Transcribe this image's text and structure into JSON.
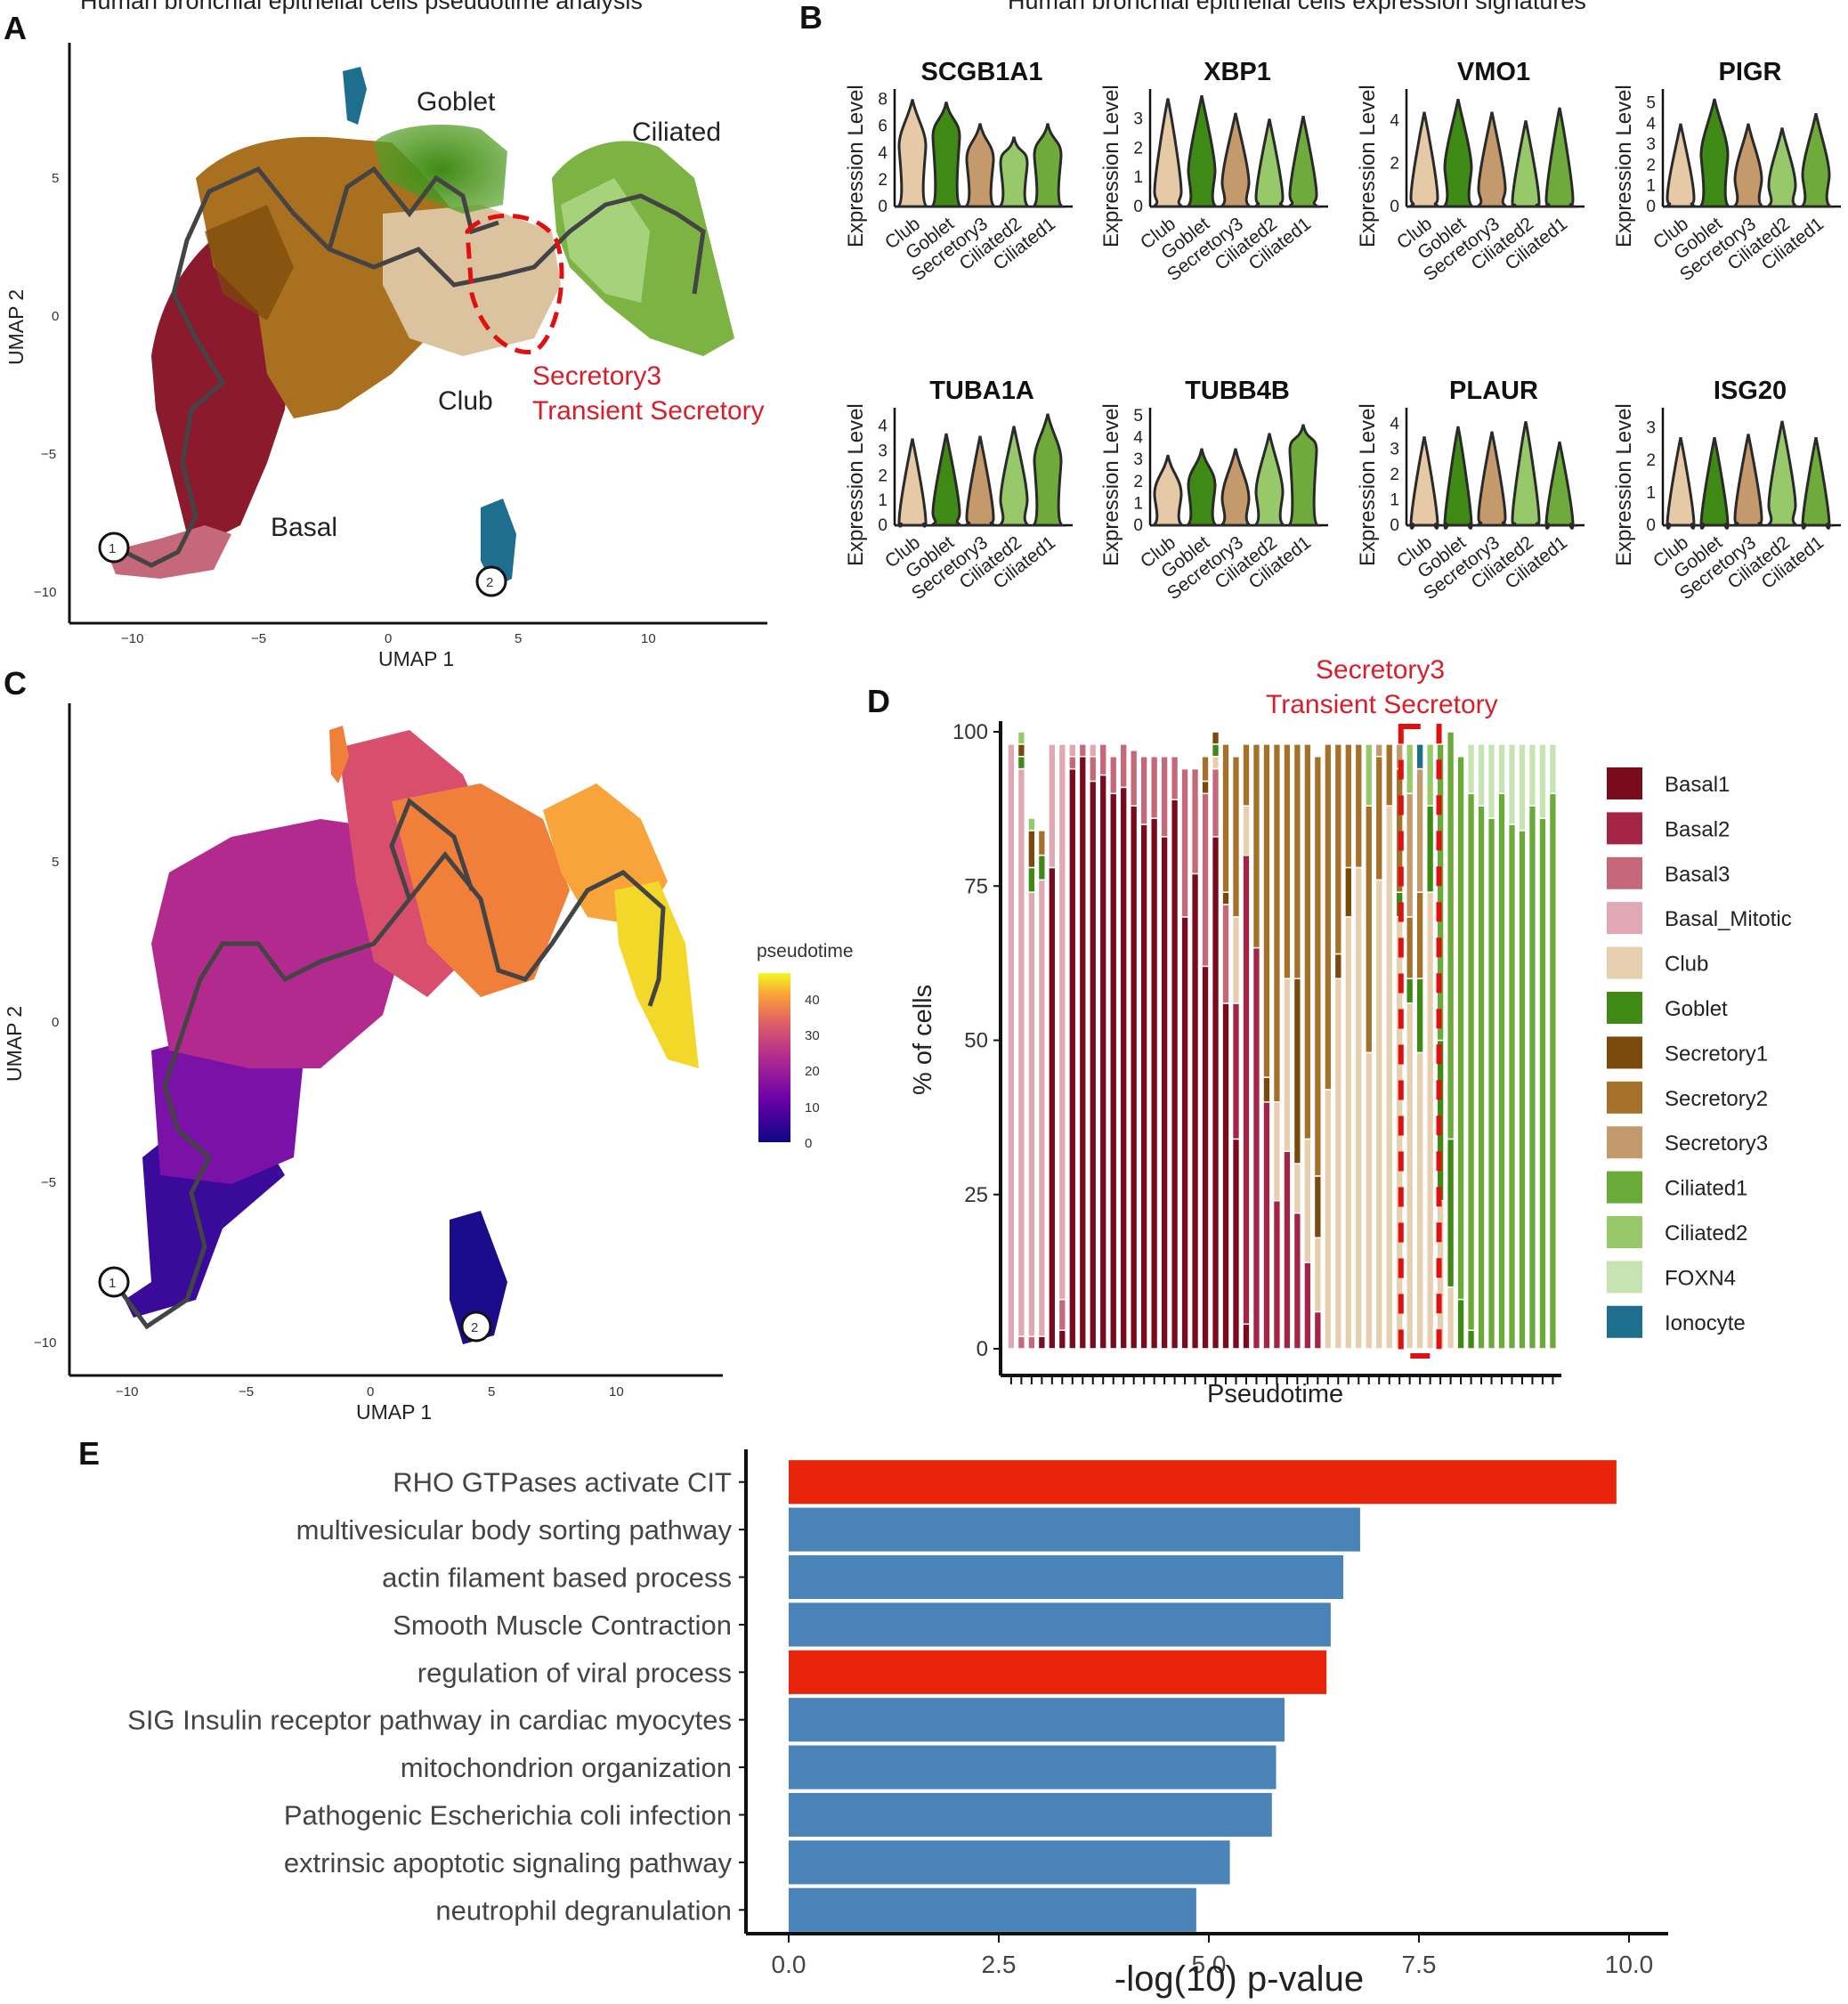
{
  "figure": {
    "panel_A": {
      "letter": "A",
      "title": "Human bronchial epithelial cells pseudotime analysis",
      "xlabel": "UMAP 1",
      "ylabel": "UMAP 2",
      "x_ticks": [
        "−10",
        "−5",
        "0",
        "5",
        "10"
      ],
      "y_ticks": [
        "5",
        "0",
        "−5",
        "−10"
      ],
      "cluster_labels": [
        "Goblet",
        "Ciliated",
        "Club",
        "Basal"
      ],
      "highlight_label_1": "Secretory3",
      "highlight_label_2": "Transient Secretory",
      "root_labels": [
        "1",
        "2"
      ]
    },
    "panel_B": {
      "letter": "B",
      "title": "Human bronchial epithelial cells expression signatures"
    },
    "panel_C": {
      "letter": "C",
      "xlabel": "UMAP 1",
      "ylabel": "UMAP 2",
      "x_ticks": [
        "−10",
        "−5",
        "0",
        "5",
        "10"
      ],
      "y_ticks": [
        "5",
        "0",
        "−5",
        "−10"
      ],
      "root_labels": [
        "1",
        "2"
      ],
      "colorbar_title": "pseudotime",
      "colorbar_ticks": [
        "40",
        "30",
        "20",
        "10",
        "0"
      ]
    },
    "panel_D": {
      "letter": "D",
      "highlight_label_1": "Secretory3",
      "highlight_label_2": "Transient Secretory"
    },
    "panel_E": {
      "letter": "E"
    }
  },
  "chart_data": [
    {
      "type": "violin",
      "panel": "B",
      "ylabel": "Expression Level",
      "categories": [
        "Club",
        "Goblet",
        "Secretory3",
        "Ciliated2",
        "Ciliated1"
      ],
      "colors": {
        "Club": "#e6c9a6",
        "Goblet": "#3f8a14",
        "Secretory3": "#c49a6c",
        "Ciliated2": "#97c96a",
        "Ciliated1": "#6eab3a"
      },
      "genes": [
        {
          "name": "SCGB1A1",
          "ylim": [
            0,
            8.5
          ],
          "ticks": [
            "0",
            "2",
            "4",
            "6",
            "8"
          ],
          "medians": [
            4.5,
            5.2,
            3.5,
            3.2,
            3.8
          ],
          "max": [
            8.0,
            7.8,
            6.2,
            5.2,
            6.2
          ]
        },
        {
          "name": "XBP1",
          "ylim": [
            0,
            3.9
          ],
          "ticks": [
            "0",
            "1",
            "2",
            "3"
          ],
          "medians": [
            0.5,
            1.2,
            0.8,
            0.3,
            0.4
          ],
          "max": [
            3.7,
            3.8,
            3.2,
            3.0,
            3.1
          ]
        },
        {
          "name": "VMO1",
          "ylim": [
            0,
            5.3
          ],
          "ticks": [
            "0",
            "2",
            "4"
          ],
          "medians": [
            0.4,
            1.8,
            0.8,
            0.2,
            0.3
          ],
          "max": [
            4.4,
            5.0,
            4.4,
            4.0,
            4.6
          ]
        },
        {
          "name": "PIGR",
          "ylim": [
            0,
            5.5
          ],
          "ticks": [
            "0",
            "1",
            "2",
            "3",
            "4",
            "5"
          ],
          "medians": [
            0.4,
            2.5,
            1.3,
            1.0,
            1.5
          ],
          "max": [
            4.0,
            5.2,
            4.0,
            3.8,
            4.5
          ]
        },
        {
          "name": "TUBA1A",
          "ylim": [
            0,
            4.6
          ],
          "ticks": [
            "0",
            "1",
            "2",
            "3",
            "4"
          ],
          "medians": [
            0.1,
            0.5,
            0.3,
            1.0,
            2.6
          ],
          "max": [
            3.5,
            3.7,
            3.6,
            4.0,
            4.5
          ]
        },
        {
          "name": "TUBB4B",
          "ylim": [
            0,
            5.2
          ],
          "ticks": [
            "0",
            "1",
            "2",
            "3",
            "4",
            "5"
          ],
          "medians": [
            1.4,
            1.8,
            1.2,
            1.5,
            3.4
          ],
          "max": [
            3.2,
            3.5,
            3.5,
            4.2,
            4.6
          ]
        },
        {
          "name": "PLAUR",
          "ylim": [
            0,
            4.5
          ],
          "ticks": [
            "0",
            "1",
            "2",
            "3",
            "4"
          ],
          "medians": [
            0.0,
            0.0,
            0.3,
            0.2,
            0.0
          ],
          "max": [
            3.5,
            3.9,
            3.7,
            4.1,
            3.3
          ]
        },
        {
          "name": "ISG20",
          "ylim": [
            0,
            3.5
          ],
          "ticks": [
            "0",
            "1",
            "2",
            "3"
          ],
          "medians": [
            0.0,
            0.0,
            0.2,
            0.6,
            0.0
          ],
          "max": [
            2.7,
            2.7,
            2.8,
            3.2,
            2.7
          ]
        }
      ]
    },
    {
      "type": "bar",
      "stacked": true,
      "panel": "D",
      "xlabel": "Pseudotime",
      "ylabel": "% of cells",
      "ylim": [
        0,
        100
      ],
      "y_ticks": [
        "0",
        "25",
        "50",
        "75",
        "100"
      ],
      "legend_position": "right",
      "cell_types": [
        "Basal1",
        "Basal2",
        "Basal3",
        "Basal_Mitotic",
        "Club",
        "Goblet",
        "Secretory1",
        "Secretory2",
        "Secretory3",
        "Ciliated1",
        "Ciliated2",
        "FOXN4",
        "Ionocyte"
      ],
      "colors": [
        "#7a0a1e",
        "#a32445",
        "#c4687a",
        "#e0a8b4",
        "#e6cfae",
        "#3f8a14",
        "#7a4a0c",
        "#a5702a",
        "#c49a6c",
        "#6aaa38",
        "#97c96a",
        "#c8e3b2",
        "#1e6f8f"
      ],
      "highlight_bins": [
        39,
        40,
        41
      ],
      "bins": [
        [
          0,
          0,
          0,
          98,
          0,
          0,
          0,
          0,
          0,
          0,
          0,
          0,
          0
        ],
        [
          0,
          0,
          2,
          92,
          0,
          2,
          2,
          0,
          0,
          0,
          2,
          0,
          0
        ],
        [
          0,
          0,
          2,
          72,
          0,
          4,
          6,
          0,
          0,
          0,
          2,
          0,
          0
        ],
        [
          2,
          0,
          0,
          74,
          0,
          4,
          0,
          4,
          0,
          0,
          0,
          0,
          0
        ],
        [
          78,
          0,
          0,
          20,
          0,
          0,
          0,
          0,
          0,
          0,
          0,
          0,
          0
        ],
        [
          3,
          0,
          5,
          90,
          0,
          0,
          0,
          0,
          0,
          0,
          0,
          0,
          0
        ],
        [
          94,
          0,
          2,
          2,
          0,
          0,
          0,
          0,
          0,
          0,
          0,
          0,
          0
        ],
        [
          96,
          0,
          2,
          0,
          0,
          0,
          0,
          0,
          0,
          0,
          0,
          0,
          0
        ],
        [
          92,
          0,
          4,
          2,
          0,
          0,
          0,
          0,
          0,
          0,
          0,
          0,
          0
        ],
        [
          93,
          0,
          5,
          0,
          0,
          0,
          0,
          0,
          0,
          0,
          0,
          0,
          0
        ],
        [
          90,
          0,
          6,
          0,
          0,
          0,
          0,
          0,
          0,
          0,
          0,
          0,
          0
        ],
        [
          91,
          0,
          7,
          0,
          0,
          0,
          0,
          0,
          0,
          0,
          0,
          0,
          0
        ],
        [
          88,
          0,
          9,
          0,
          0,
          0,
          0,
          0,
          0,
          0,
          0,
          0,
          0
        ],
        [
          85,
          0,
          11,
          0,
          0,
          0,
          0,
          0,
          0,
          0,
          0,
          0,
          0
        ],
        [
          86,
          0,
          10,
          0,
          0,
          0,
          0,
          0,
          0,
          0,
          0,
          0,
          0
        ],
        [
          83,
          0,
          13,
          0,
          0,
          0,
          0,
          0,
          0,
          0,
          0,
          0,
          0
        ],
        [
          89,
          0,
          7,
          0,
          0,
          0,
          0,
          0,
          0,
          0,
          0,
          0,
          0
        ],
        [
          70,
          0,
          24,
          0,
          0,
          0,
          0,
          0,
          0,
          0,
          0,
          0,
          0
        ],
        [
          77,
          0,
          17,
          0,
          0,
          0,
          0,
          0,
          0,
          0,
          0,
          0,
          0
        ],
        [
          62,
          0,
          28,
          0,
          0,
          0,
          2,
          4,
          0,
          0,
          0,
          0,
          0
        ],
        [
          83,
          0,
          11,
          0,
          2,
          2,
          2,
          0,
          0,
          0,
          0,
          0,
          0
        ],
        [
          56,
          0,
          16,
          0,
          0,
          0,
          2,
          24,
          0,
          0,
          0,
          0,
          0
        ],
        [
          34,
          22,
          0,
          0,
          14,
          0,
          0,
          26,
          0,
          0,
          0,
          0,
          0
        ],
        [
          4,
          76,
          0,
          0,
          8,
          0,
          0,
          10,
          0,
          0,
          0,
          0,
          0
        ],
        [
          0,
          65,
          0,
          0,
          0,
          0,
          0,
          33,
          0,
          0,
          0,
          0,
          0
        ],
        [
          0,
          40,
          0,
          0,
          0,
          0,
          4,
          54,
          0,
          0,
          0,
          0,
          0
        ],
        [
          0,
          24,
          0,
          0,
          16,
          0,
          0,
          58,
          0,
          0,
          0,
          0,
          0
        ],
        [
          0,
          32,
          0,
          0,
          28,
          0,
          0,
          38,
          0,
          0,
          0,
          0,
          0
        ],
        [
          0,
          22,
          0,
          0,
          8,
          0,
          30,
          38,
          0,
          0,
          0,
          0,
          0
        ],
        [
          0,
          14,
          0,
          0,
          20,
          0,
          0,
          64,
          0,
          0,
          0,
          0,
          0
        ],
        [
          0,
          6,
          0,
          0,
          12,
          0,
          10,
          68,
          0,
          0,
          0,
          0,
          0
        ],
        [
          0,
          0,
          0,
          0,
          42,
          0,
          0,
          56,
          0,
          0,
          0,
          0,
          0
        ],
        [
          0,
          0,
          0,
          0,
          60,
          0,
          4,
          34,
          0,
          0,
          0,
          0,
          0
        ],
        [
          0,
          0,
          0,
          0,
          70,
          0,
          8,
          20,
          0,
          0,
          0,
          0,
          0
        ],
        [
          0,
          0,
          0,
          0,
          78,
          0,
          0,
          20,
          0,
          0,
          0,
          0,
          0
        ],
        [
          0,
          0,
          0,
          0,
          48,
          0,
          0,
          40,
          0,
          0,
          10,
          0,
          0
        ],
        [
          0,
          0,
          0,
          0,
          76,
          0,
          0,
          20,
          2,
          0,
          0,
          0,
          0
        ],
        [
          0,
          0,
          0,
          0,
          88,
          0,
          0,
          10,
          0,
          0,
          0,
          0,
          0
        ],
        [
          0,
          0,
          0,
          0,
          70,
          4,
          0,
          20,
          4,
          0,
          0,
          0,
          0
        ],
        [
          0,
          0,
          0,
          0,
          56,
          4,
          0,
          10,
          20,
          0,
          8,
          0,
          0
        ],
        [
          0,
          0,
          0,
          0,
          48,
          12,
          0,
          14,
          20,
          0,
          0,
          0,
          4
        ],
        [
          0,
          0,
          0,
          0,
          74,
          14,
          0,
          0,
          0,
          0,
          10,
          0,
          0
        ],
        [
          0,
          0,
          0,
          0,
          24,
          26,
          0,
          0,
          0,
          48,
          0,
          0,
          0
        ],
        [
          0,
          0,
          0,
          0,
          10,
          24,
          0,
          0,
          0,
          66,
          0,
          0,
          0
        ],
        [
          0,
          0,
          0,
          0,
          0,
          8,
          0,
          0,
          0,
          88,
          0,
          0,
          0
        ],
        [
          0,
          0,
          0,
          0,
          0,
          3,
          0,
          0,
          0,
          87,
          0,
          8,
          0
        ],
        [
          0,
          0,
          0,
          0,
          0,
          0,
          0,
          0,
          0,
          88,
          0,
          10,
          0
        ],
        [
          0,
          0,
          0,
          0,
          0,
          0,
          0,
          0,
          0,
          86,
          0,
          12,
          0
        ],
        [
          0,
          0,
          0,
          0,
          0,
          0,
          0,
          0,
          0,
          90,
          0,
          8,
          0
        ],
        [
          0,
          0,
          0,
          0,
          0,
          0,
          0,
          0,
          0,
          85,
          0,
          13,
          0
        ],
        [
          0,
          0,
          0,
          0,
          0,
          0,
          0,
          0,
          0,
          84,
          0,
          14,
          0
        ],
        [
          0,
          0,
          0,
          0,
          0,
          0,
          0,
          0,
          0,
          88,
          0,
          10,
          0
        ],
        [
          0,
          0,
          0,
          0,
          0,
          0,
          0,
          0,
          0,
          86,
          0,
          12,
          0
        ],
        [
          0,
          0,
          0,
          0,
          0,
          0,
          0,
          0,
          0,
          90,
          0,
          8,
          0
        ]
      ]
    },
    {
      "type": "bar",
      "orientation": "horizontal",
      "panel": "E",
      "xlabel": "-log(10) p-value",
      "xlim": [
        0,
        10.5
      ],
      "x_ticks": [
        "0.0",
        "2.5",
        "5.0",
        "7.5",
        "10.0"
      ],
      "categories": [
        "RHO GTPases activate CIT",
        "multivesicular body sorting pathway",
        "actin filament  based process",
        "Smooth Muscle Contraction",
        "regulation of viral process",
        "SIG Insulin receptor pathway in cardiac myocytes",
        "mitochondrion organization",
        "Pathogenic Escherichia coli infection",
        "extrinsic apoptotic signaling pathway",
        "neutrophil degranulation"
      ],
      "values": [
        9.85,
        6.8,
        6.6,
        6.45,
        6.4,
        5.9,
        5.8,
        5.75,
        5.25,
        4.85
      ],
      "colors": [
        "#e8240a",
        "#4a83b7",
        "#4a83b7",
        "#4a83b7",
        "#e8240a",
        "#4a83b7",
        "#4a83b7",
        "#4a83b7",
        "#4a83b7",
        "#4a83b7"
      ]
    }
  ],
  "legend_title_D": "",
  "gene_header": "",
  "axis_labels_B": {
    "ylabel": "Expression Level"
  }
}
